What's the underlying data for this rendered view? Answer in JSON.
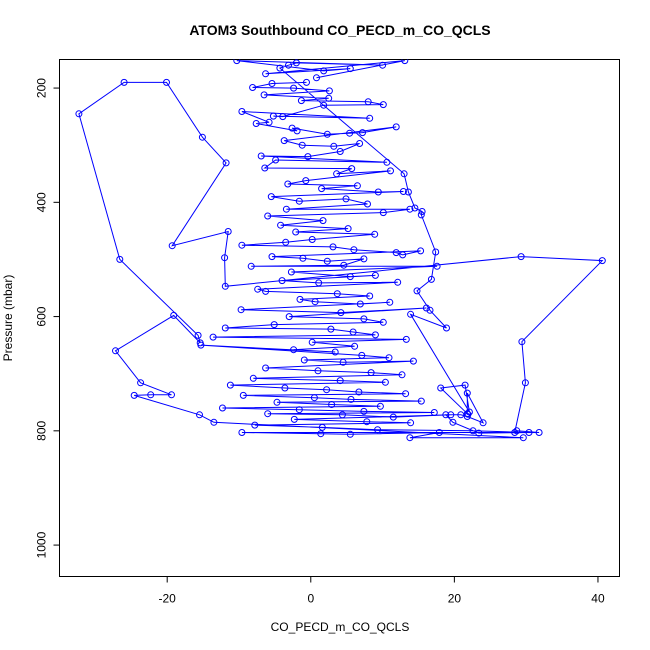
{
  "chart_data": {
    "type": "scatter",
    "title": "ATOM3 Southbound CO_PECD_m_CO_QCLS",
    "xlabel": "CO_PECD_m_CO_QCLS",
    "ylabel": "Pressure (mbar)",
    "xlim": [
      -35,
      43
    ],
    "ylim": [
      150,
      1055
    ],
    "y_reversed": true,
    "x_ticks": [
      -20,
      0,
      20,
      40
    ],
    "y_ticks": [
      200,
      400,
      600,
      800,
      1000
    ],
    "grid": false,
    "marker": "open-circle",
    "line_connected": true,
    "series": [
      {
        "color": "#0000ff",
        "points": [
          [
            -0.6,
            190
          ],
          [
            -5.4,
            192
          ],
          [
            -8.1,
            199
          ],
          [
            -2.4,
            200
          ],
          [
            2.6,
            205
          ],
          [
            -6.5,
            212
          ],
          [
            2.5,
            218
          ],
          [
            -1.3,
            222
          ],
          [
            8.0,
            224
          ],
          [
            10.1,
            229
          ],
          [
            1.8,
            230
          ],
          [
            -3.9,
            250
          ],
          [
            -5.2,
            249
          ],
          [
            8.2,
            253
          ],
          [
            -9.6,
            241
          ],
          [
            -5.8,
            260
          ],
          [
            -7.6,
            262
          ],
          [
            -1.9,
            275
          ],
          [
            -2.6,
            270
          ],
          [
            2.3,
            281
          ],
          [
            5.4,
            279
          ],
          [
            7.2,
            278
          ],
          [
            11.9,
            268
          ],
          [
            -3.7,
            292
          ],
          [
            -1.2,
            300
          ],
          [
            3.2,
            302
          ],
          [
            6.8,
            297
          ],
          [
            4.1,
            311
          ],
          [
            -0.4,
            320
          ],
          [
            -6.9,
            319
          ],
          [
            10.6,
            330
          ],
          [
            -4.9,
            326
          ],
          [
            -6.4,
            340
          ],
          [
            5.7,
            341
          ],
          [
            3.6,
            350
          ],
          [
            11.1,
            345
          ],
          [
            -0.7,
            362
          ],
          [
            -3.2,
            368
          ],
          [
            6.5,
            371
          ],
          [
            1.5,
            376
          ],
          [
            9.4,
            382
          ],
          [
            12.9,
            381
          ],
          [
            -5.5,
            390
          ],
          [
            -1.6,
            398
          ],
          [
            4.9,
            394
          ],
          [
            7.9,
            403
          ],
          [
            -3.4,
            412
          ],
          [
            13.8,
            412
          ],
          [
            10.1,
            418
          ],
          [
            -6.0,
            424
          ],
          [
            1.7,
            432
          ],
          [
            -4.2,
            440
          ],
          [
            5.2,
            446
          ],
          [
            -2.1,
            452
          ],
          [
            8.9,
            456
          ],
          [
            0.2,
            465
          ],
          [
            -3.5,
            470
          ],
          [
            -9.6,
            475
          ],
          [
            3.1,
            478
          ],
          [
            6.0,
            483
          ],
          [
            11.9,
            488
          ],
          [
            12.8,
            492
          ],
          [
            15.3,
            485
          ],
          [
            -5.4,
            495
          ],
          [
            -1.1,
            498
          ],
          [
            2.3,
            503
          ],
          [
            7.4,
            499
          ],
          [
            4.6,
            510
          ],
          [
            -8.3,
            512
          ],
          [
            17.6,
            512
          ],
          [
            -2.7,
            522
          ],
          [
            5.5,
            530
          ],
          [
            9.0,
            528
          ],
          [
            -4.0,
            537
          ],
          [
            1.1,
            541
          ],
          [
            12.1,
            540
          ],
          [
            -7.4,
            552
          ],
          [
            -6.3,
            556
          ],
          [
            3.7,
            560
          ],
          [
            8.2,
            564
          ],
          [
            -1.5,
            570
          ],
          [
            0.6,
            574
          ],
          [
            6.9,
            578
          ],
          [
            11.0,
            575
          ],
          [
            -9.7,
            588
          ],
          [
            4.2,
            593
          ],
          [
            16.1,
            585
          ],
          [
            -3.0,
            600
          ],
          [
            7.4,
            604
          ],
          [
            10.1,
            610
          ],
          [
            -5.1,
            614
          ],
          [
            -11.9,
            620
          ],
          [
            2.8,
            622
          ],
          [
            5.9,
            627
          ],
          [
            9.0,
            632
          ],
          [
            -13.6,
            636
          ],
          [
            13.3,
            640
          ],
          [
            0.2,
            645
          ],
          [
            6.1,
            652
          ],
          [
            -2.4,
            658
          ],
          [
            3.4,
            662
          ],
          [
            -15.3,
            650
          ],
          [
            7.1,
            668
          ],
          [
            10.9,
            672
          ],
          [
            -0.9,
            676
          ],
          [
            4.5,
            680
          ],
          [
            14.3,
            678
          ],
          [
            -6.3,
            690
          ],
          [
            1.0,
            695
          ],
          [
            8.4,
            698
          ],
          [
            12.7,
            702
          ],
          [
            -8.0,
            708
          ],
          [
            4.1,
            712
          ],
          [
            10.4,
            715
          ],
          [
            -11.2,
            720
          ],
          [
            -3.6,
            725
          ],
          [
            2.2,
            728
          ],
          [
            6.7,
            732
          ],
          [
            13.2,
            735
          ],
          [
            -9.4,
            738
          ],
          [
            0.5,
            742
          ],
          [
            5.6,
            745
          ],
          [
            15.4,
            748
          ],
          [
            -4.7,
            750
          ],
          [
            2.9,
            754
          ],
          [
            9.7,
            757
          ],
          [
            -12.3,
            760
          ],
          [
            -1.6,
            763
          ],
          [
            7.4,
            766
          ],
          [
            17.2,
            768
          ],
          [
            -6.0,
            770
          ],
          [
            4.4,
            772
          ],
          [
            11.5,
            776
          ],
          [
            19.5,
            772
          ],
          [
            -2.3,
            780
          ],
          [
            7.8,
            784
          ],
          [
            13.9,
            786
          ],
          [
            -7.8,
            790
          ],
          [
            1.6,
            794
          ],
          [
            9.3,
            798
          ],
          [
            22.6,
            800
          ],
          [
            30.4,
            803
          ],
          [
            -9.6,
            803
          ],
          [
            1.4,
            805
          ],
          [
            5.5,
            806
          ],
          [
            17.9,
            803
          ],
          [
            13.8,
            812
          ],
          [
            29.6,
            812
          ],
          [
            -13.5,
            785
          ],
          [
            -15.5,
            772
          ],
          [
            -24.6,
            738
          ],
          [
            -22.3,
            737
          ],
          [
            -19.4,
            737
          ],
          [
            -23.7,
            716
          ],
          [
            -27.2,
            660
          ],
          [
            -19.1,
            598
          ],
          [
            -15.4,
            646
          ],
          [
            -15.7,
            633
          ],
          [
            -26.6,
            500
          ],
          [
            -32.3,
            245
          ],
          [
            -26.0,
            190
          ],
          [
            -20.1,
            190
          ],
          [
            -15.1,
            286
          ],
          [
            -11.8,
            331
          ],
          [
            -19.3,
            476
          ],
          [
            -11.5,
            451
          ],
          [
            -12.0,
            497
          ],
          [
            -11.9,
            547
          ],
          [
            29.3,
            495
          ],
          [
            40.6,
            502
          ],
          [
            29.4,
            644
          ],
          [
            29.9,
            716
          ],
          [
            28.4,
            803
          ],
          [
            28.7,
            800
          ],
          [
            31.8,
            803
          ],
          [
            23.4,
            804
          ],
          [
            19.8,
            785
          ],
          [
            18.8,
            772
          ],
          [
            20.9,
            772
          ],
          [
            21.8,
            775
          ],
          [
            24.0,
            786
          ],
          [
            21.8,
            734
          ],
          [
            21.8,
            770
          ],
          [
            21.9,
            771
          ],
          [
            18.1,
            725
          ],
          [
            21.5,
            720
          ],
          [
            22.1,
            767
          ],
          [
            13.9,
            596
          ],
          [
            18.9,
            620
          ],
          [
            16.6,
            589
          ],
          [
            14.8,
            555
          ],
          [
            16.8,
            535
          ],
          [
            17.4,
            487
          ],
          [
            15.4,
            422
          ],
          [
            15.5,
            416
          ],
          [
            14.5,
            410
          ],
          [
            13.6,
            382
          ],
          [
            13.0,
            350
          ],
          [
            -4.3,
            165
          ],
          [
            -3.1,
            160
          ],
          [
            -2.0,
            156
          ],
          [
            10.0,
            160
          ],
          [
            -10.3,
            152
          ],
          [
            1.8,
            170
          ],
          [
            5.5,
            166
          ],
          [
            -6.3,
            175
          ],
          [
            13.1,
            152
          ],
          [
            0.8,
            182
          ]
        ]
      }
    ]
  }
}
